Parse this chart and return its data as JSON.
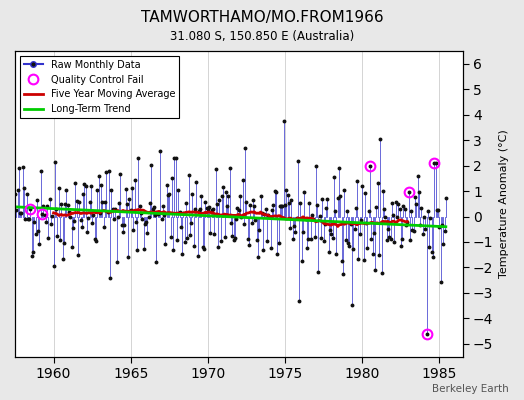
{
  "title": "TAMWORTHAMO/MO.FROM1966",
  "subtitle": "31.080 S, 150.850 E (Australia)",
  "ylabel": "Temperature Anomaly (°C)",
  "xlabel_years": [
    1960,
    1965,
    1970,
    1975,
    1980,
    1985
  ],
  "ylim": [
    -5.5,
    6.5
  ],
  "xlim": [
    1957.5,
    1986.5
  ],
  "yticks": [
    -5,
    -4,
    -3,
    -2,
    -1,
    0,
    1,
    2,
    3,
    4,
    5,
    6
  ],
  "watermark": "Berkeley Earth",
  "bg_color": "#e8e8e8",
  "plot_bg_color": "#ffffff",
  "raw_color": "#3333cc",
  "ma_color": "#cc0000",
  "trend_color": "#00cc00",
  "qc_color": "#ff00ff",
  "seed": 42,
  "start_year": 1957.5,
  "end_year": 1985.5
}
